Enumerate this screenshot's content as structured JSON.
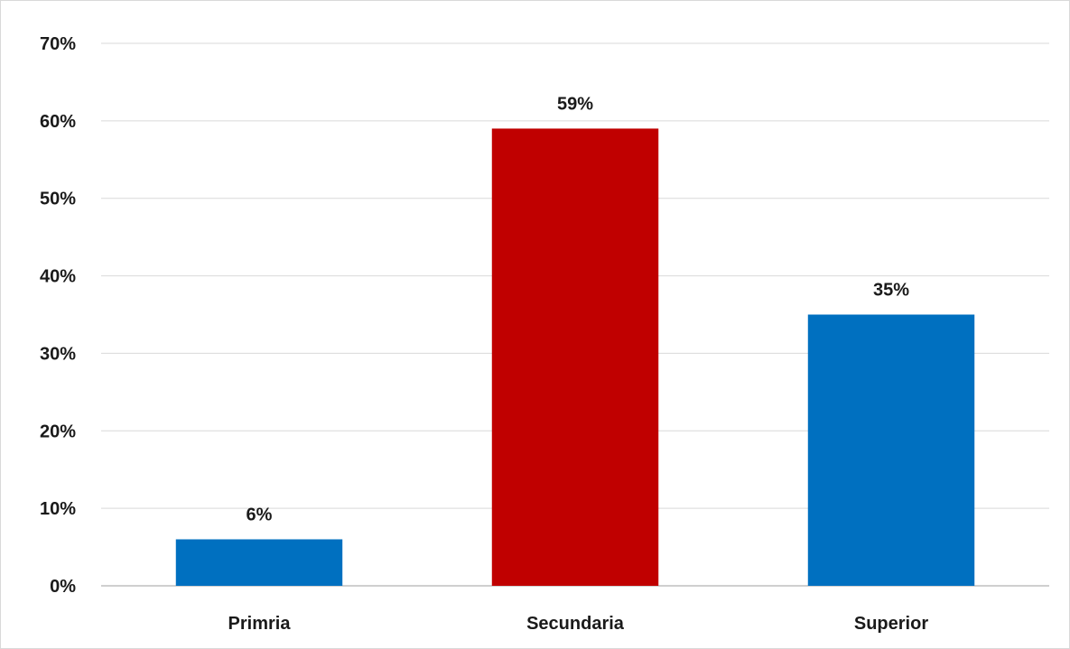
{
  "chart_data": {
    "type": "bar",
    "title": "",
    "xlabel": "",
    "ylabel": "",
    "categories": [
      "Primria",
      "Secundaria",
      "Superior"
    ],
    "values": [
      6,
      59,
      35
    ],
    "value_labels": [
      "6%",
      "59%",
      "35%"
    ],
    "ylim": [
      0,
      70
    ],
    "yticks": [
      0,
      10,
      20,
      30,
      40,
      50,
      60,
      70
    ],
    "ytick_labels": [
      "0%",
      "10%",
      "20%",
      "30%",
      "40%",
      "50%",
      "60%",
      "70%"
    ],
    "bar_colors": [
      "#0070c0",
      "#c00000",
      "#0070c0"
    ],
    "grid": true,
    "legend": "none"
  }
}
